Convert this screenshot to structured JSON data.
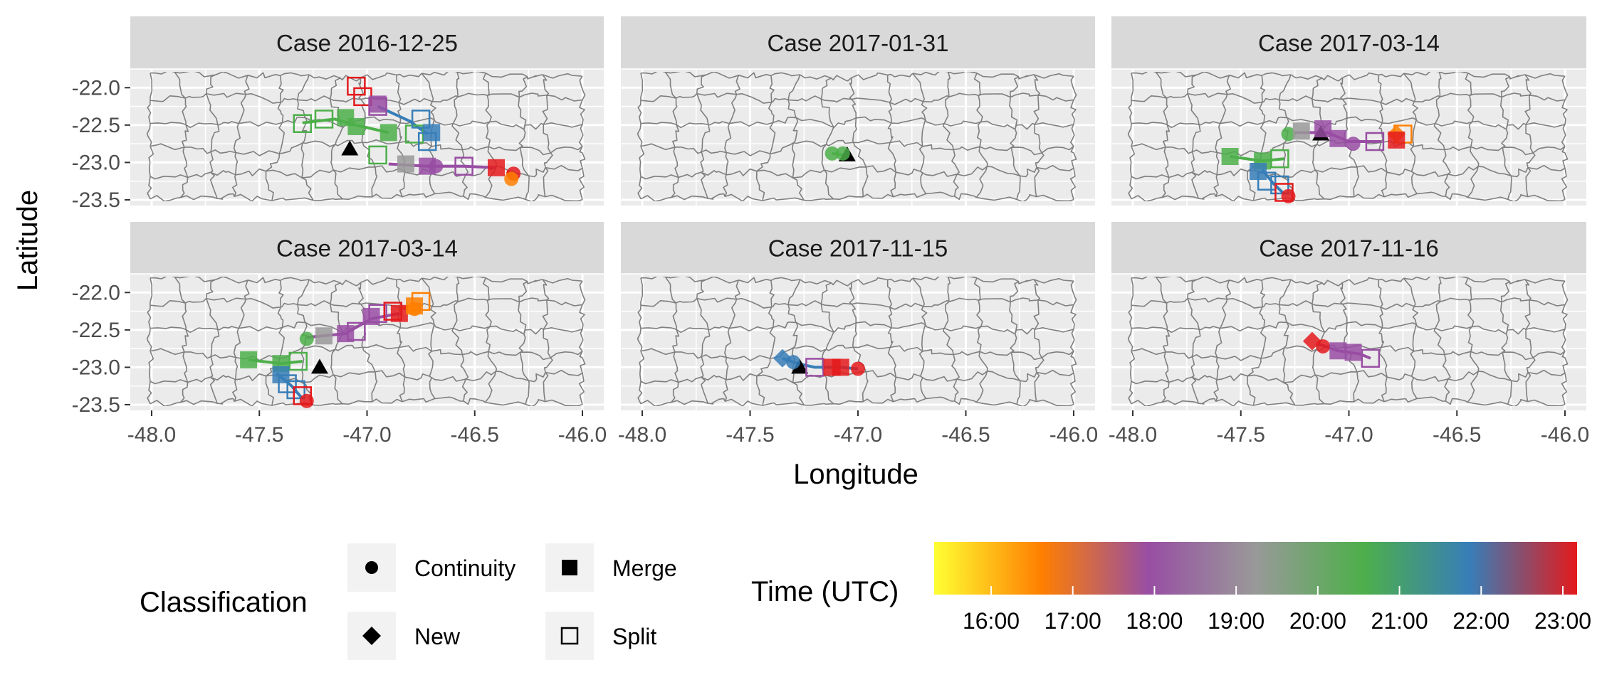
{
  "figure": {
    "x_axis_title": "Longitude",
    "y_axis_title": "Latitude",
    "x_ticks": [
      "-48.0",
      "-47.5",
      "-47.0",
      "-46.5",
      "-46.0"
    ],
    "y_ticks": [
      "-22.0",
      "-22.5",
      "-23.0",
      "-23.5"
    ],
    "map": {
      "x_range": [
        -48.0,
        -46.0
      ],
      "y_range": [
        -23.5,
        -21.75
      ],
      "region_fill": "#ebebeb",
      "border_color": "#7f7f7f",
      "background": "#ebebeb"
    },
    "panels": [
      {
        "title": "Case 2016-12-25",
        "radar_marker": [
          -47.08,
          -22.82
        ],
        "tracks": [
          {
            "color": "#4daf4a",
            "points": [
              [
                -47.3,
                -22.47
              ],
              [
                -47.15,
                -22.42
              ],
              [
                -47.05,
                -22.5
              ],
              [
                -46.9,
                -22.6
              ]
            ]
          },
          {
            "color": "#377eb8",
            "points": [
              [
                -46.95,
                -22.25
              ],
              [
                -46.8,
                -22.45
              ],
              [
                -46.72,
                -22.62
              ]
            ]
          },
          {
            "color": "#984ea3",
            "points": [
              [
                -46.9,
                -23.02
              ],
              [
                -46.72,
                -23.05
              ],
              [
                -46.55,
                -23.05
              ],
              [
                -46.4,
                -23.07
              ]
            ]
          },
          {
            "color": "#ff7f00",
            "points": [
              [
                -46.35,
                -23.12
              ],
              [
                -46.32,
                -23.2
              ]
            ]
          }
        ],
        "points": [
          {
            "lon": -47.05,
            "lat": -21.98,
            "shape": "split",
            "color": "#e41a1c"
          },
          {
            "lon": -47.02,
            "lat": -22.12,
            "shape": "split",
            "color": "#e41a1c"
          },
          {
            "lon": -46.95,
            "lat": -22.22,
            "shape": "merge",
            "color": "#984ea3"
          },
          {
            "lon": -46.95,
            "lat": -22.25,
            "shape": "split",
            "color": "#984ea3"
          },
          {
            "lon": -47.2,
            "lat": -22.42,
            "shape": "split",
            "color": "#4daf4a"
          },
          {
            "lon": -47.3,
            "lat": -22.48,
            "shape": "split",
            "color": "#4daf4a"
          },
          {
            "lon": -47.1,
            "lat": -22.4,
            "shape": "merge",
            "color": "#4daf4a"
          },
          {
            "lon": -47.05,
            "lat": -22.52,
            "shape": "merge",
            "color": "#4daf4a"
          },
          {
            "lon": -46.9,
            "lat": -22.6,
            "shape": "merge",
            "color": "#4daf4a"
          },
          {
            "lon": -46.78,
            "lat": -22.62,
            "shape": "split",
            "color": "#4daf4a"
          },
          {
            "lon": -46.75,
            "lat": -22.42,
            "shape": "split",
            "color": "#377eb8"
          },
          {
            "lon": -46.7,
            "lat": -22.6,
            "shape": "merge",
            "color": "#377eb8"
          },
          {
            "lon": -46.72,
            "lat": -22.72,
            "shape": "split",
            "color": "#377eb8"
          },
          {
            "lon": -46.95,
            "lat": -22.9,
            "shape": "split",
            "color": "#4daf4a"
          },
          {
            "lon": -46.82,
            "lat": -23.02,
            "shape": "merge",
            "color": "#999999"
          },
          {
            "lon": -46.72,
            "lat": -23.05,
            "shape": "merge",
            "color": "#984ea3"
          },
          {
            "lon": -46.68,
            "lat": -23.05,
            "shape": "continuity",
            "color": "#984ea3"
          },
          {
            "lon": -46.55,
            "lat": -23.05,
            "shape": "split",
            "color": "#984ea3"
          },
          {
            "lon": -46.4,
            "lat": -23.07,
            "shape": "merge",
            "color": "#e41a1c"
          },
          {
            "lon": -46.32,
            "lat": -23.15,
            "shape": "continuity",
            "color": "#e41a1c"
          },
          {
            "lon": -46.33,
            "lat": -23.22,
            "shape": "continuity",
            "color": "#ff7f00"
          }
        ]
      },
      {
        "title": "Case 2017-01-31",
        "radar_marker": [
          -47.05,
          -22.9
        ],
        "tracks": [
          {
            "color": "#4daf4a",
            "points": [
              [
                -47.12,
                -22.88
              ],
              [
                -47.07,
                -22.9
              ]
            ]
          }
        ],
        "points": [
          {
            "lon": -47.12,
            "lat": -22.88,
            "shape": "continuity",
            "color": "#4daf4a"
          },
          {
            "lon": -47.07,
            "lat": -22.88,
            "shape": "continuity",
            "color": "#4daf4a"
          }
        ]
      },
      {
        "title": "Case 2017-03-14",
        "radar_marker": [
          -47.13,
          -22.62
        ],
        "tracks": [
          {
            "color": "#4daf4a",
            "points": [
              [
                -47.55,
                -22.92
              ],
              [
                -47.4,
                -22.98
              ],
              [
                -47.3,
                -22.95
              ]
            ]
          },
          {
            "color": "#984ea3",
            "points": [
              [
                -47.25,
                -22.6
              ],
              [
                -47.1,
                -22.6
              ],
              [
                -47.0,
                -22.72
              ],
              [
                -46.85,
                -22.72
              ]
            ]
          },
          {
            "color": "#377eb8",
            "points": [
              [
                -47.4,
                -23.1
              ],
              [
                -47.35,
                -23.28
              ],
              [
                -47.3,
                -23.42
              ]
            ]
          }
        ],
        "points": [
          {
            "lon": -47.55,
            "lat": -22.92,
            "shape": "merge",
            "color": "#4daf4a"
          },
          {
            "lon": -47.4,
            "lat": -22.98,
            "shape": "merge",
            "color": "#4daf4a"
          },
          {
            "lon": -47.32,
            "lat": -22.95,
            "shape": "split",
            "color": "#4daf4a"
          },
          {
            "lon": -47.28,
            "lat": -22.62,
            "shape": "continuity",
            "color": "#4daf4a"
          },
          {
            "lon": -47.22,
            "lat": -22.58,
            "shape": "merge",
            "color": "#999999"
          },
          {
            "lon": -47.12,
            "lat": -22.55,
            "shape": "merge",
            "color": "#984ea3"
          },
          {
            "lon": -47.05,
            "lat": -22.68,
            "shape": "merge",
            "color": "#984ea3"
          },
          {
            "lon": -46.98,
            "lat": -22.75,
            "shape": "continuity",
            "color": "#984ea3"
          },
          {
            "lon": -46.88,
            "lat": -22.72,
            "shape": "split",
            "color": "#984ea3"
          },
          {
            "lon": -46.78,
            "lat": -22.62,
            "shape": "new",
            "color": "#ff7f00"
          },
          {
            "lon": -46.75,
            "lat": -22.62,
            "shape": "split",
            "color": "#ff7f00"
          },
          {
            "lon": -46.78,
            "lat": -22.7,
            "shape": "merge",
            "color": "#e41a1c"
          },
          {
            "lon": -47.42,
            "lat": -23.12,
            "shape": "merge",
            "color": "#377eb8"
          },
          {
            "lon": -47.38,
            "lat": -23.25,
            "shape": "split",
            "color": "#377eb8"
          },
          {
            "lon": -47.32,
            "lat": -23.3,
            "shape": "split",
            "color": "#377eb8"
          },
          {
            "lon": -47.3,
            "lat": -23.4,
            "shape": "split",
            "color": "#e41a1c"
          },
          {
            "lon": -47.28,
            "lat": -23.45,
            "shape": "continuity",
            "color": "#e41a1c"
          }
        ]
      },
      {
        "title": "Case 2017-03-14",
        "radar_marker": [
          -47.22,
          -23.0
        ],
        "tracks": [
          {
            "color": "#4daf4a",
            "points": [
              [
                -47.55,
                -22.9
              ],
              [
                -47.4,
                -22.95
              ],
              [
                -47.3,
                -22.92
              ]
            ]
          },
          {
            "color": "#984ea3",
            "points": [
              [
                -47.28,
                -22.6
              ],
              [
                -47.1,
                -22.55
              ],
              [
                -46.98,
                -22.35
              ],
              [
                -46.85,
                -22.28
              ]
            ]
          },
          {
            "color": "#377eb8",
            "points": [
              [
                -47.42,
                -23.08
              ],
              [
                -47.35,
                -23.25
              ],
              [
                -47.3,
                -23.42
              ]
            ]
          },
          {
            "color": "#ff7f00",
            "points": [
              [
                -46.85,
                -22.22
              ],
              [
                -46.75,
                -22.15
              ]
            ]
          }
        ],
        "points": [
          {
            "lon": -47.55,
            "lat": -22.9,
            "shape": "merge",
            "color": "#4daf4a"
          },
          {
            "lon": -47.4,
            "lat": -22.95,
            "shape": "merge",
            "color": "#4daf4a"
          },
          {
            "lon": -47.32,
            "lat": -22.92,
            "shape": "split",
            "color": "#4daf4a"
          },
          {
            "lon": -47.28,
            "lat": -22.62,
            "shape": "continuity",
            "color": "#4daf4a"
          },
          {
            "lon": -47.2,
            "lat": -22.58,
            "shape": "merge",
            "color": "#999999"
          },
          {
            "lon": -47.1,
            "lat": -22.55,
            "shape": "merge",
            "color": "#984ea3"
          },
          {
            "lon": -47.05,
            "lat": -22.52,
            "shape": "split",
            "color": "#984ea3"
          },
          {
            "lon": -46.98,
            "lat": -22.32,
            "shape": "merge",
            "color": "#984ea3"
          },
          {
            "lon": -46.95,
            "lat": -22.28,
            "shape": "split",
            "color": "#984ea3"
          },
          {
            "lon": -46.85,
            "lat": -22.28,
            "shape": "merge",
            "color": "#e41a1c"
          },
          {
            "lon": -46.88,
            "lat": -22.25,
            "shape": "split",
            "color": "#e41a1c"
          },
          {
            "lon": -46.78,
            "lat": -22.18,
            "shape": "merge",
            "color": "#ff7f00"
          },
          {
            "lon": -46.75,
            "lat": -22.12,
            "shape": "split",
            "color": "#ff7f00"
          },
          {
            "lon": -46.78,
            "lat": -22.22,
            "shape": "continuity",
            "color": "#ff7f00"
          },
          {
            "lon": -47.4,
            "lat": -23.1,
            "shape": "merge",
            "color": "#377eb8"
          },
          {
            "lon": -47.37,
            "lat": -23.22,
            "shape": "split",
            "color": "#377eb8"
          },
          {
            "lon": -47.33,
            "lat": -23.3,
            "shape": "split",
            "color": "#377eb8"
          },
          {
            "lon": -47.3,
            "lat": -23.38,
            "shape": "split",
            "color": "#e41a1c"
          },
          {
            "lon": -47.28,
            "lat": -23.45,
            "shape": "continuity",
            "color": "#e41a1c"
          }
        ]
      },
      {
        "title": "Case 2017-11-15",
        "radar_marker": [
          -47.27,
          -23.0
        ],
        "tracks": [
          {
            "color": "#377eb8",
            "points": [
              [
                -47.35,
                -22.88
              ],
              [
                -47.28,
                -22.95
              ],
              [
                -47.2,
                -23.0
              ],
              [
                -47.08,
                -23.0
              ],
              [
                -47.0,
                -23.02
              ]
            ]
          }
        ],
        "points": [
          {
            "lon": -47.35,
            "lat": -22.88,
            "shape": "new",
            "color": "#377eb8"
          },
          {
            "lon": -47.3,
            "lat": -22.93,
            "shape": "continuity",
            "color": "#377eb8"
          },
          {
            "lon": -47.2,
            "lat": -23.0,
            "shape": "split",
            "color": "#984ea3"
          },
          {
            "lon": -47.12,
            "lat": -23.0,
            "shape": "merge",
            "color": "#e41a1c"
          },
          {
            "lon": -47.08,
            "lat": -23.0,
            "shape": "merge",
            "color": "#e41a1c"
          },
          {
            "lon": -47.0,
            "lat": -23.02,
            "shape": "continuity",
            "color": "#e41a1c"
          }
        ]
      },
      {
        "title": "Case 2017-11-16",
        "radar_marker": null,
        "tracks": [
          {
            "color": "#984ea3",
            "points": [
              [
                -47.15,
                -22.68
              ],
              [
                -47.05,
                -22.78
              ],
              [
                -46.95,
                -22.82
              ],
              [
                -46.9,
                -22.88
              ]
            ]
          }
        ],
        "points": [
          {
            "lon": -47.17,
            "lat": -22.65,
            "shape": "new",
            "color": "#e41a1c"
          },
          {
            "lon": -47.12,
            "lat": -22.72,
            "shape": "continuity",
            "color": "#e41a1c"
          },
          {
            "lon": -47.05,
            "lat": -22.78,
            "shape": "merge",
            "color": "#984ea3"
          },
          {
            "lon": -46.98,
            "lat": -22.8,
            "shape": "merge",
            "color": "#984ea3"
          },
          {
            "lon": -46.9,
            "lat": -22.88,
            "shape": "split",
            "color": "#984ea3"
          }
        ]
      }
    ]
  },
  "legend": {
    "classification": {
      "title": "Classification",
      "items": [
        {
          "label": "Continuity",
          "shape": "continuity"
        },
        {
          "label": "Merge",
          "shape": "merge"
        },
        {
          "label": "New",
          "shape": "new"
        },
        {
          "label": "Split",
          "shape": "split"
        }
      ]
    },
    "time": {
      "title": "Time (UTC)",
      "labels": [
        "16:00",
        "17:00",
        "18:00",
        "19:00",
        "20:00",
        "21:00",
        "22:00",
        "23:00"
      ],
      "gradient": [
        "#ffff33",
        "#ff7f00",
        "#984ea3",
        "#999999",
        "#4daf4a",
        "#377eb8",
        "#e41a1c"
      ]
    }
  }
}
